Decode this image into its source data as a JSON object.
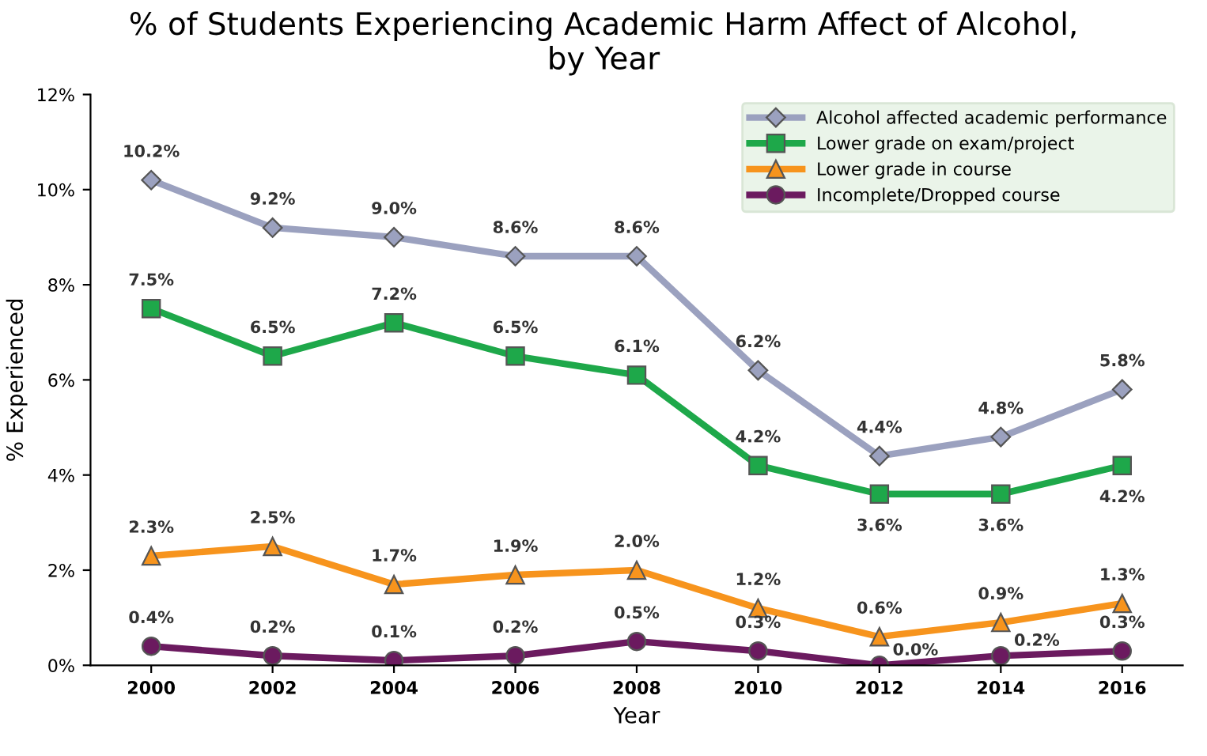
{
  "chart_data": {
    "type": "line",
    "title": "% of Students Experiencing Academic Harm Affect of Alcohol,\nby Year",
    "xlabel": "Year",
    "ylabel": "% Experienced",
    "categories": [
      "2000",
      "2002",
      "2004",
      "2006",
      "2008",
      "2010",
      "2012",
      "2014",
      "2016"
    ],
    "ylim": [
      0,
      12
    ],
    "yticks": [
      {
        "value": 0,
        "label": "0%"
      },
      {
        "value": 2,
        "label": "2%"
      },
      {
        "value": 4,
        "label": "4%"
      },
      {
        "value": 6,
        "label": "6%"
      },
      {
        "value": 8,
        "label": "8%"
      },
      {
        "value": 10,
        "label": "10%"
      },
      {
        "value": 12,
        "label": "12%"
      }
    ],
    "legend": "top right",
    "line_style": "solid",
    "series": [
      {
        "name": "Alcohol affected academic performance",
        "color": "#9ba1bf",
        "marker": "diamond",
        "values": [
          10.2,
          9.2,
          9.0,
          8.6,
          8.6,
          6.2,
          4.4,
          4.8,
          5.8
        ],
        "value_labels": [
          "10.2%",
          "9.2%",
          "9.0%",
          "8.6%",
          "8.6%",
          "6.2%",
          "4.4%",
          "4.8%",
          "5.8%"
        ]
      },
      {
        "name": "Lower grade on exam/project",
        "color": "#1ea84a",
        "marker": "square",
        "values": [
          7.5,
          6.5,
          7.2,
          6.5,
          6.1,
          4.2,
          3.6,
          3.6,
          4.2
        ],
        "value_labels": [
          "7.5%",
          "6.5%",
          "7.2%",
          "6.5%",
          "6.1%",
          "4.2%",
          "3.6%",
          "3.6%",
          "4.2%"
        ]
      },
      {
        "name": "Lower grade in course",
        "color": "#f7941d",
        "marker": "triangle",
        "values": [
          2.3,
          2.5,
          1.7,
          1.9,
          2.0,
          1.2,
          0.6,
          0.9,
          1.3
        ],
        "value_labels": [
          "2.3%",
          "2.5%",
          "1.7%",
          "1.9%",
          "2.0%",
          "1.2%",
          "0.6%",
          "0.9%",
          "1.3%"
        ]
      },
      {
        "name": "Incomplete/Dropped course",
        "color": "#6b1a5f",
        "marker": "circle",
        "values": [
          0.4,
          0.2,
          0.1,
          0.2,
          0.5,
          0.3,
          0.0,
          0.2,
          0.3
        ],
        "value_labels": [
          "0.4%",
          "0.2%",
          "0.1%",
          "0.2%",
          "0.5%",
          "0.3%",
          "0.0%",
          "0.2%",
          "0.3%"
        ]
      }
    ]
  }
}
